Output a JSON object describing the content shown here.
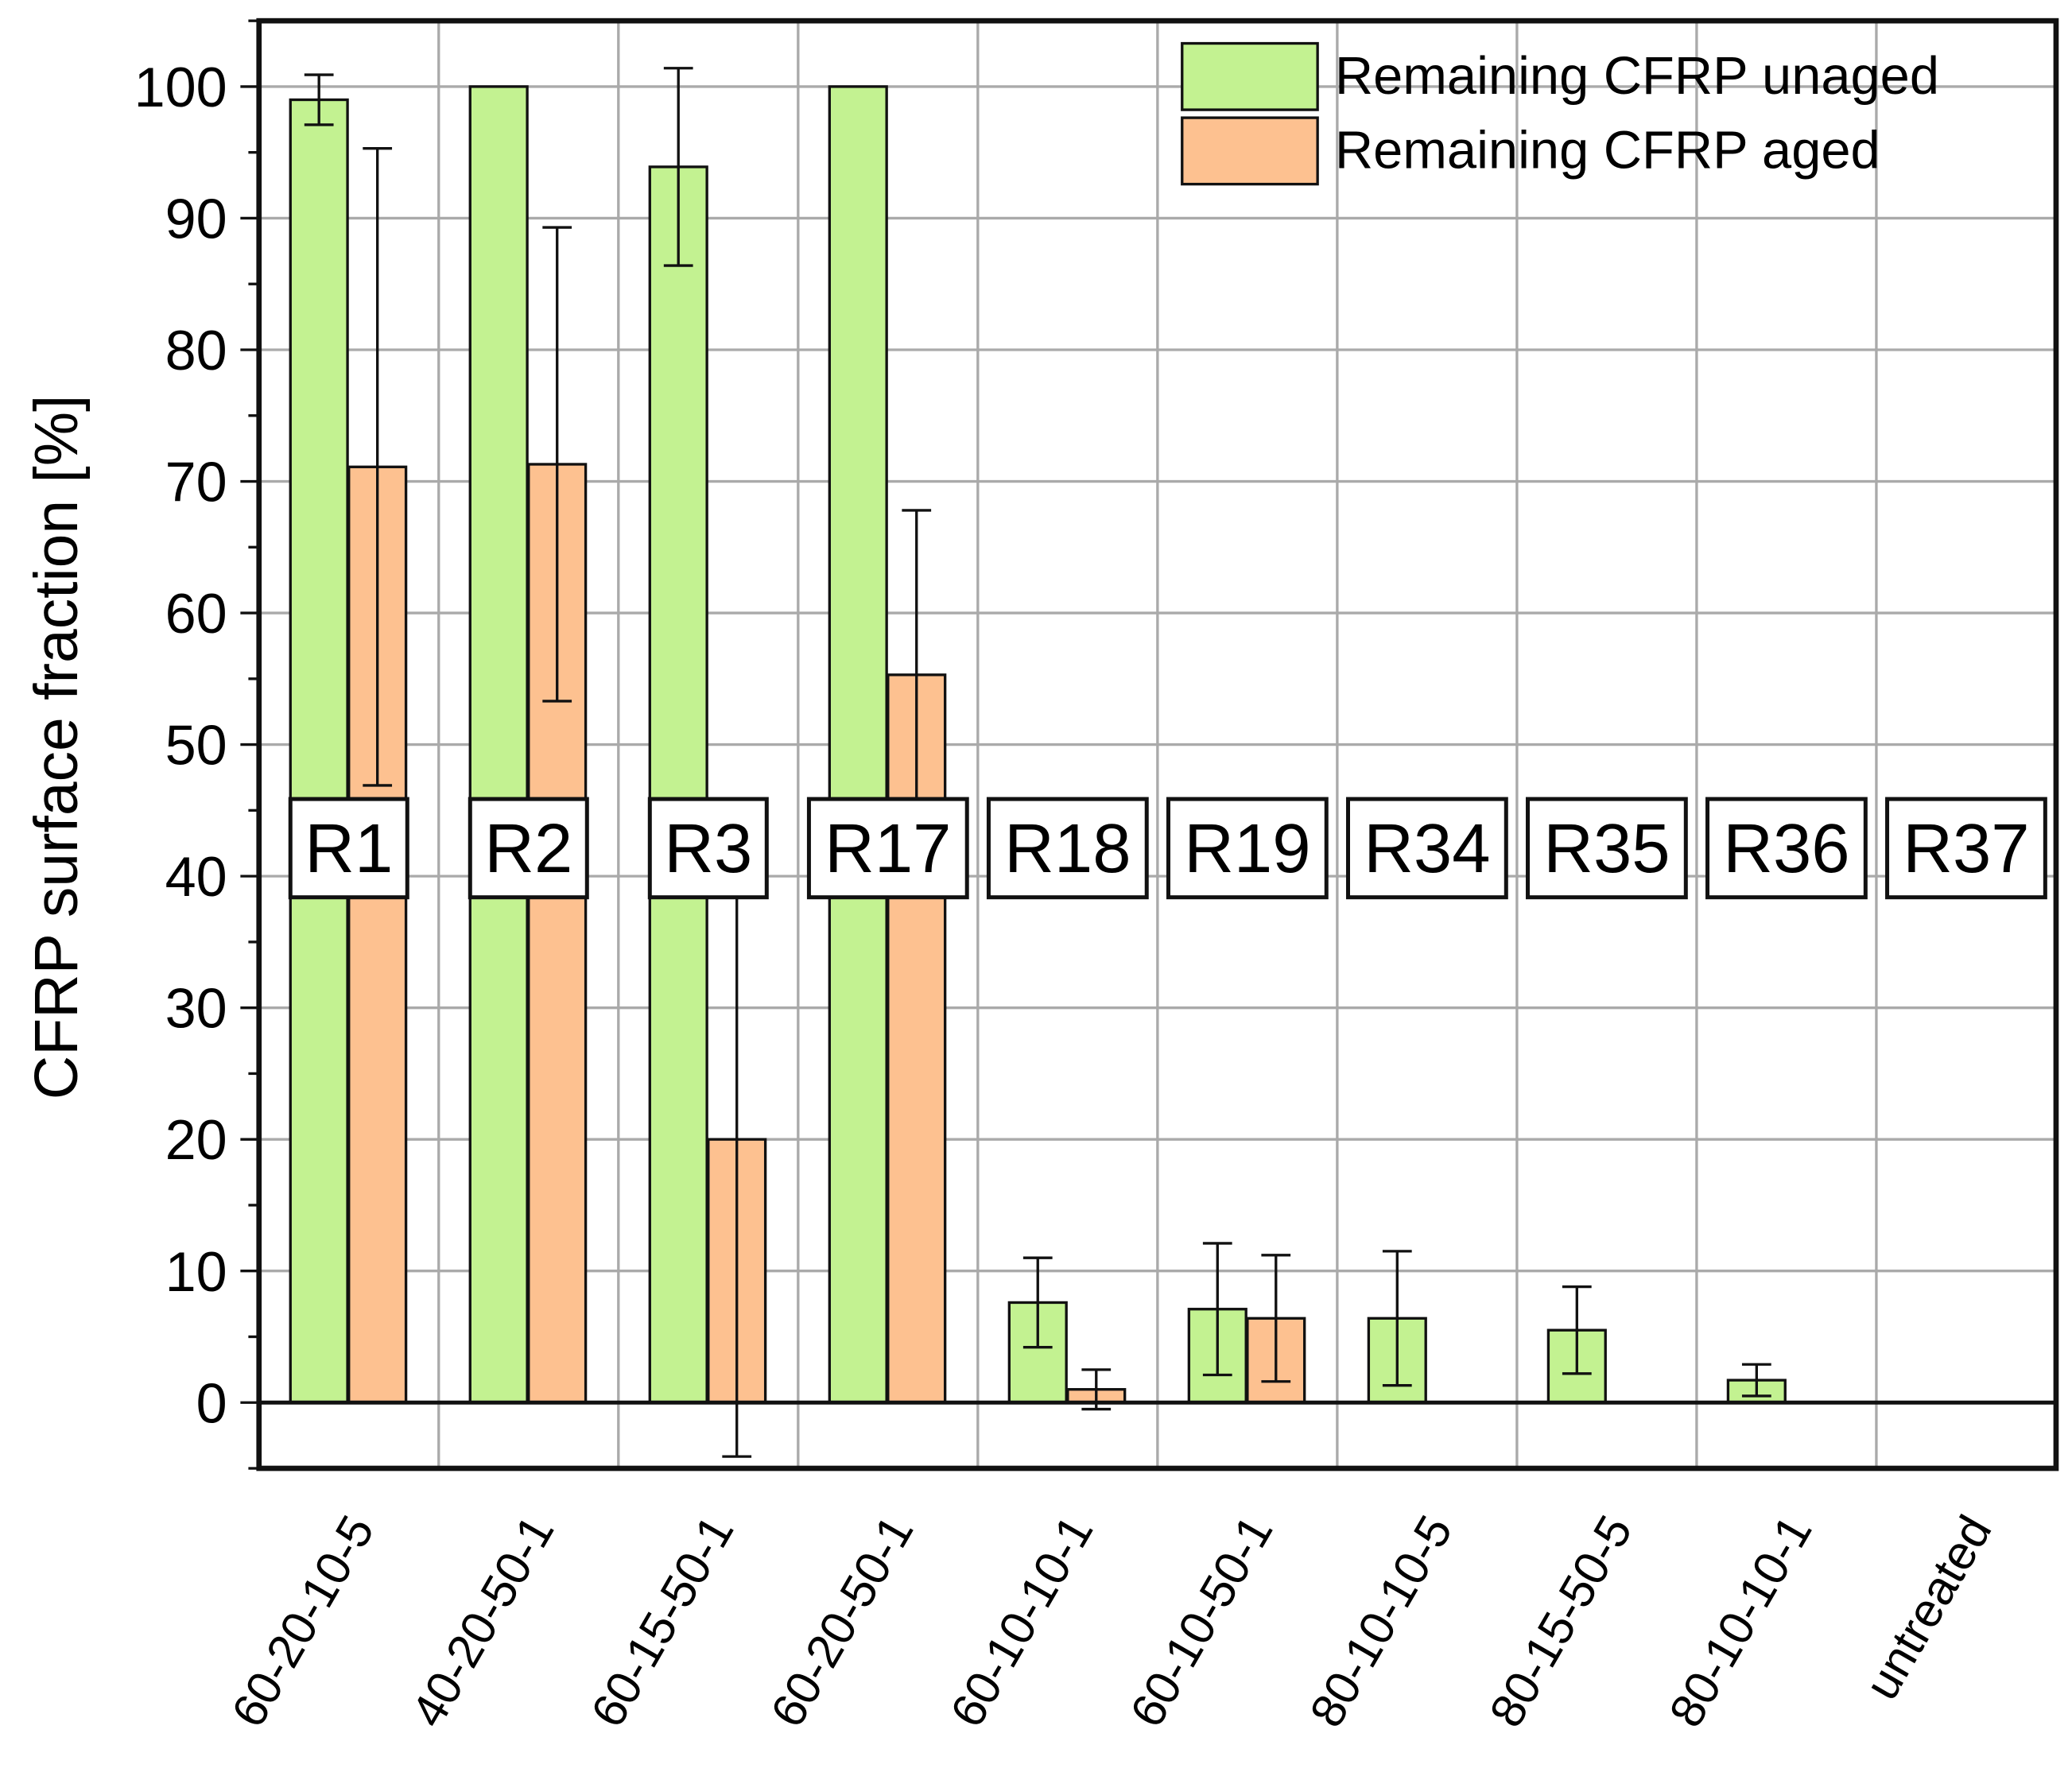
{
  "chart_data": {
    "type": "bar",
    "title": "",
    "xlabel": "",
    "ylabel": "CFRP surface fraction [%]",
    "ylim": [
      -5,
      105
    ],
    "yticks": [
      0,
      10,
      20,
      30,
      40,
      50,
      60,
      70,
      80,
      90,
      100
    ],
    "grid": true,
    "legend_position": "top-right",
    "categories": [
      "60-20-10-5",
      "40-20-50-1",
      "60-15-50-1",
      "60-20-50-1",
      "60-10-10-1",
      "60-10-50-1",
      "80-10-10-5",
      "80-15-50-5",
      "80-10-10-1",
      "untreated"
    ],
    "group_labels": [
      "R1",
      "R2",
      "R3",
      "R17",
      "R18",
      "R19",
      "R34",
      "R35",
      "R36",
      "R37"
    ],
    "series": [
      {
        "name": "Remaining CFRP unaged",
        "color": "#c3f291",
        "values": [
          99.0,
          100.0,
          93.9,
          100.0,
          7.6,
          7.1,
          6.4,
          5.5,
          1.7,
          null
        ],
        "errors": [
          1.9,
          0,
          7.5,
          0,
          3.4,
          5.0,
          5.1,
          3.3,
          1.2,
          null
        ]
      },
      {
        "name": "Remaining CFRP aged",
        "color": "#fdc190",
        "values": [
          71.1,
          71.3,
          20.0,
          55.3,
          1.0,
          6.4,
          null,
          null,
          null,
          null
        ],
        "errors": [
          24.2,
          18.0,
          24.1,
          12.5,
          1.5,
          4.8,
          null,
          null,
          null,
          null
        ]
      }
    ]
  }
}
